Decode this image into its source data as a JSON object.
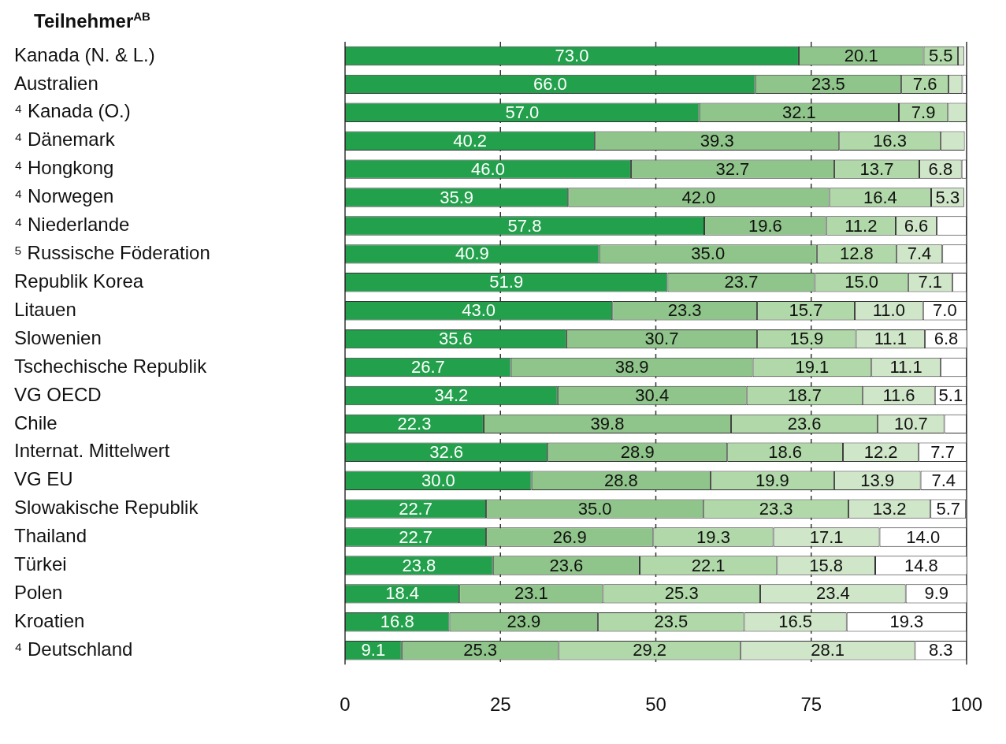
{
  "chart_data": {
    "type": "bar",
    "orientation": "horizontal",
    "stacked": true,
    "title": "Teilnehmer$^{AB}$",
    "categories": [
      "Kanada (N. & L.)",
      "Australien",
      "⁴ Kanada (O.)",
      "⁴ Dänemark",
      "⁴ Hongkong",
      "⁴ Norwegen",
      "⁴ Niederlande",
      "⁵ Russische Föderation",
      "Republik Korea",
      "Litauen",
      "Slowenien",
      "Tschechische Republik",
      "VG OECD",
      "Chile",
      "Internat. Mittelwert",
      "VG EU",
      "Slowakische Republik",
      "Thailand",
      "Türkei",
      "Polen",
      "Kroatien",
      "⁴ Deutschland"
    ],
    "series": [
      {
        "color": "#22a04b",
        "values": [
          73.0,
          66.0,
          57.0,
          40.2,
          46.0,
          35.9,
          57.8,
          40.9,
          51.9,
          43.0,
          35.6,
          26.7,
          34.2,
          22.3,
          32.6,
          30.0,
          22.7,
          22.7,
          23.8,
          18.4,
          16.8,
          9.1
        ],
        "value_labels": [
          "73.0",
          "66.0",
          "57.0",
          "40.2",
          "46.0",
          "35.9",
          "57.8",
          "40.9",
          "51.9",
          "43.0",
          "35.6",
          "26.7",
          "34.2",
          "22.3",
          "32.6",
          "30.0",
          "22.7",
          "22.7",
          "23.8",
          "18.4",
          "16.8",
          "9.1"
        ]
      },
      {
        "color": "#8fc48a",
        "values": [
          20.1,
          23.5,
          32.1,
          39.3,
          32.7,
          42.0,
          19.6,
          35.0,
          23.7,
          23.3,
          30.7,
          38.9,
          30.4,
          39.8,
          28.9,
          28.8,
          35.0,
          26.9,
          23.6,
          23.1,
          23.9,
          25.3
        ],
        "value_labels": [
          "20.1",
          "23.5",
          "32.1",
          "39.3",
          "32.7",
          "42.0",
          "19.6",
          "35.0",
          "23.7",
          "23.3",
          "30.7",
          "38.9",
          "30.4",
          "39.8",
          "28.9",
          "28.8",
          "35.0",
          "26.9",
          "23.6",
          "23.1",
          "23.9",
          "25.3"
        ]
      },
      {
        "color": "#b0d8a8",
        "values": [
          5.5,
          7.6,
          7.9,
          16.3,
          13.7,
          16.4,
          11.2,
          12.8,
          15.0,
          15.7,
          15.9,
          19.1,
          18.7,
          23.6,
          18.6,
          19.9,
          23.3,
          19.3,
          22.1,
          25.3,
          23.5,
          29.2
        ],
        "value_labels": [
          "5.5",
          "7.6",
          "7.9",
          "16.3",
          "13.7",
          "16.4",
          "11.2",
          "12.8",
          "15.0",
          "15.7",
          "15.9",
          "19.1",
          "18.7",
          "23.6",
          "18.6",
          "19.9",
          "23.3",
          "19.3",
          "22.1",
          "25.3",
          "23.5",
          "29.2"
        ]
      },
      {
        "color": "#d0e6c9",
        "values": [
          1.0,
          2.2,
          3.0,
          3.9,
          6.8,
          5.3,
          6.6,
          7.4,
          7.1,
          11.0,
          11.1,
          11.1,
          11.6,
          10.7,
          12.2,
          13.9,
          13.2,
          17.1,
          15.8,
          23.4,
          16.5,
          28.1
        ],
        "value_labels": [
          null,
          null,
          null,
          null,
          "6.8",
          "5.3",
          "6.6",
          "7.4",
          "7.1",
          "11.0",
          "11.1",
          "11.1",
          "11.6",
          "10.7",
          "12.2",
          "13.9",
          "13.2",
          "17.1",
          "15.8",
          "23.4",
          "16.5",
          "28.1"
        ]
      },
      {
        "color": "#ffffff",
        "values": [
          null,
          0.7,
          null,
          null,
          0.8,
          null,
          4.8,
          3.9,
          2.3,
          7.0,
          6.8,
          4.2,
          5.1,
          3.6,
          7.7,
          7.4,
          5.7,
          14.0,
          14.8,
          9.9,
          19.3,
          8.3
        ],
        "value_labels": [
          null,
          null,
          null,
          null,
          null,
          null,
          null,
          null,
          null,
          "7.0",
          "6.8",
          null,
          "5.1",
          null,
          "7.7",
          "7.4",
          "5.7",
          "14.0",
          "14.8",
          "9.9",
          "19.3",
          "8.3"
        ]
      }
    ],
    "xlim": [
      0,
      100
    ],
    "xticks": [
      0,
      25,
      50,
      75,
      100
    ],
    "grid": "x",
    "legend": false
  }
}
